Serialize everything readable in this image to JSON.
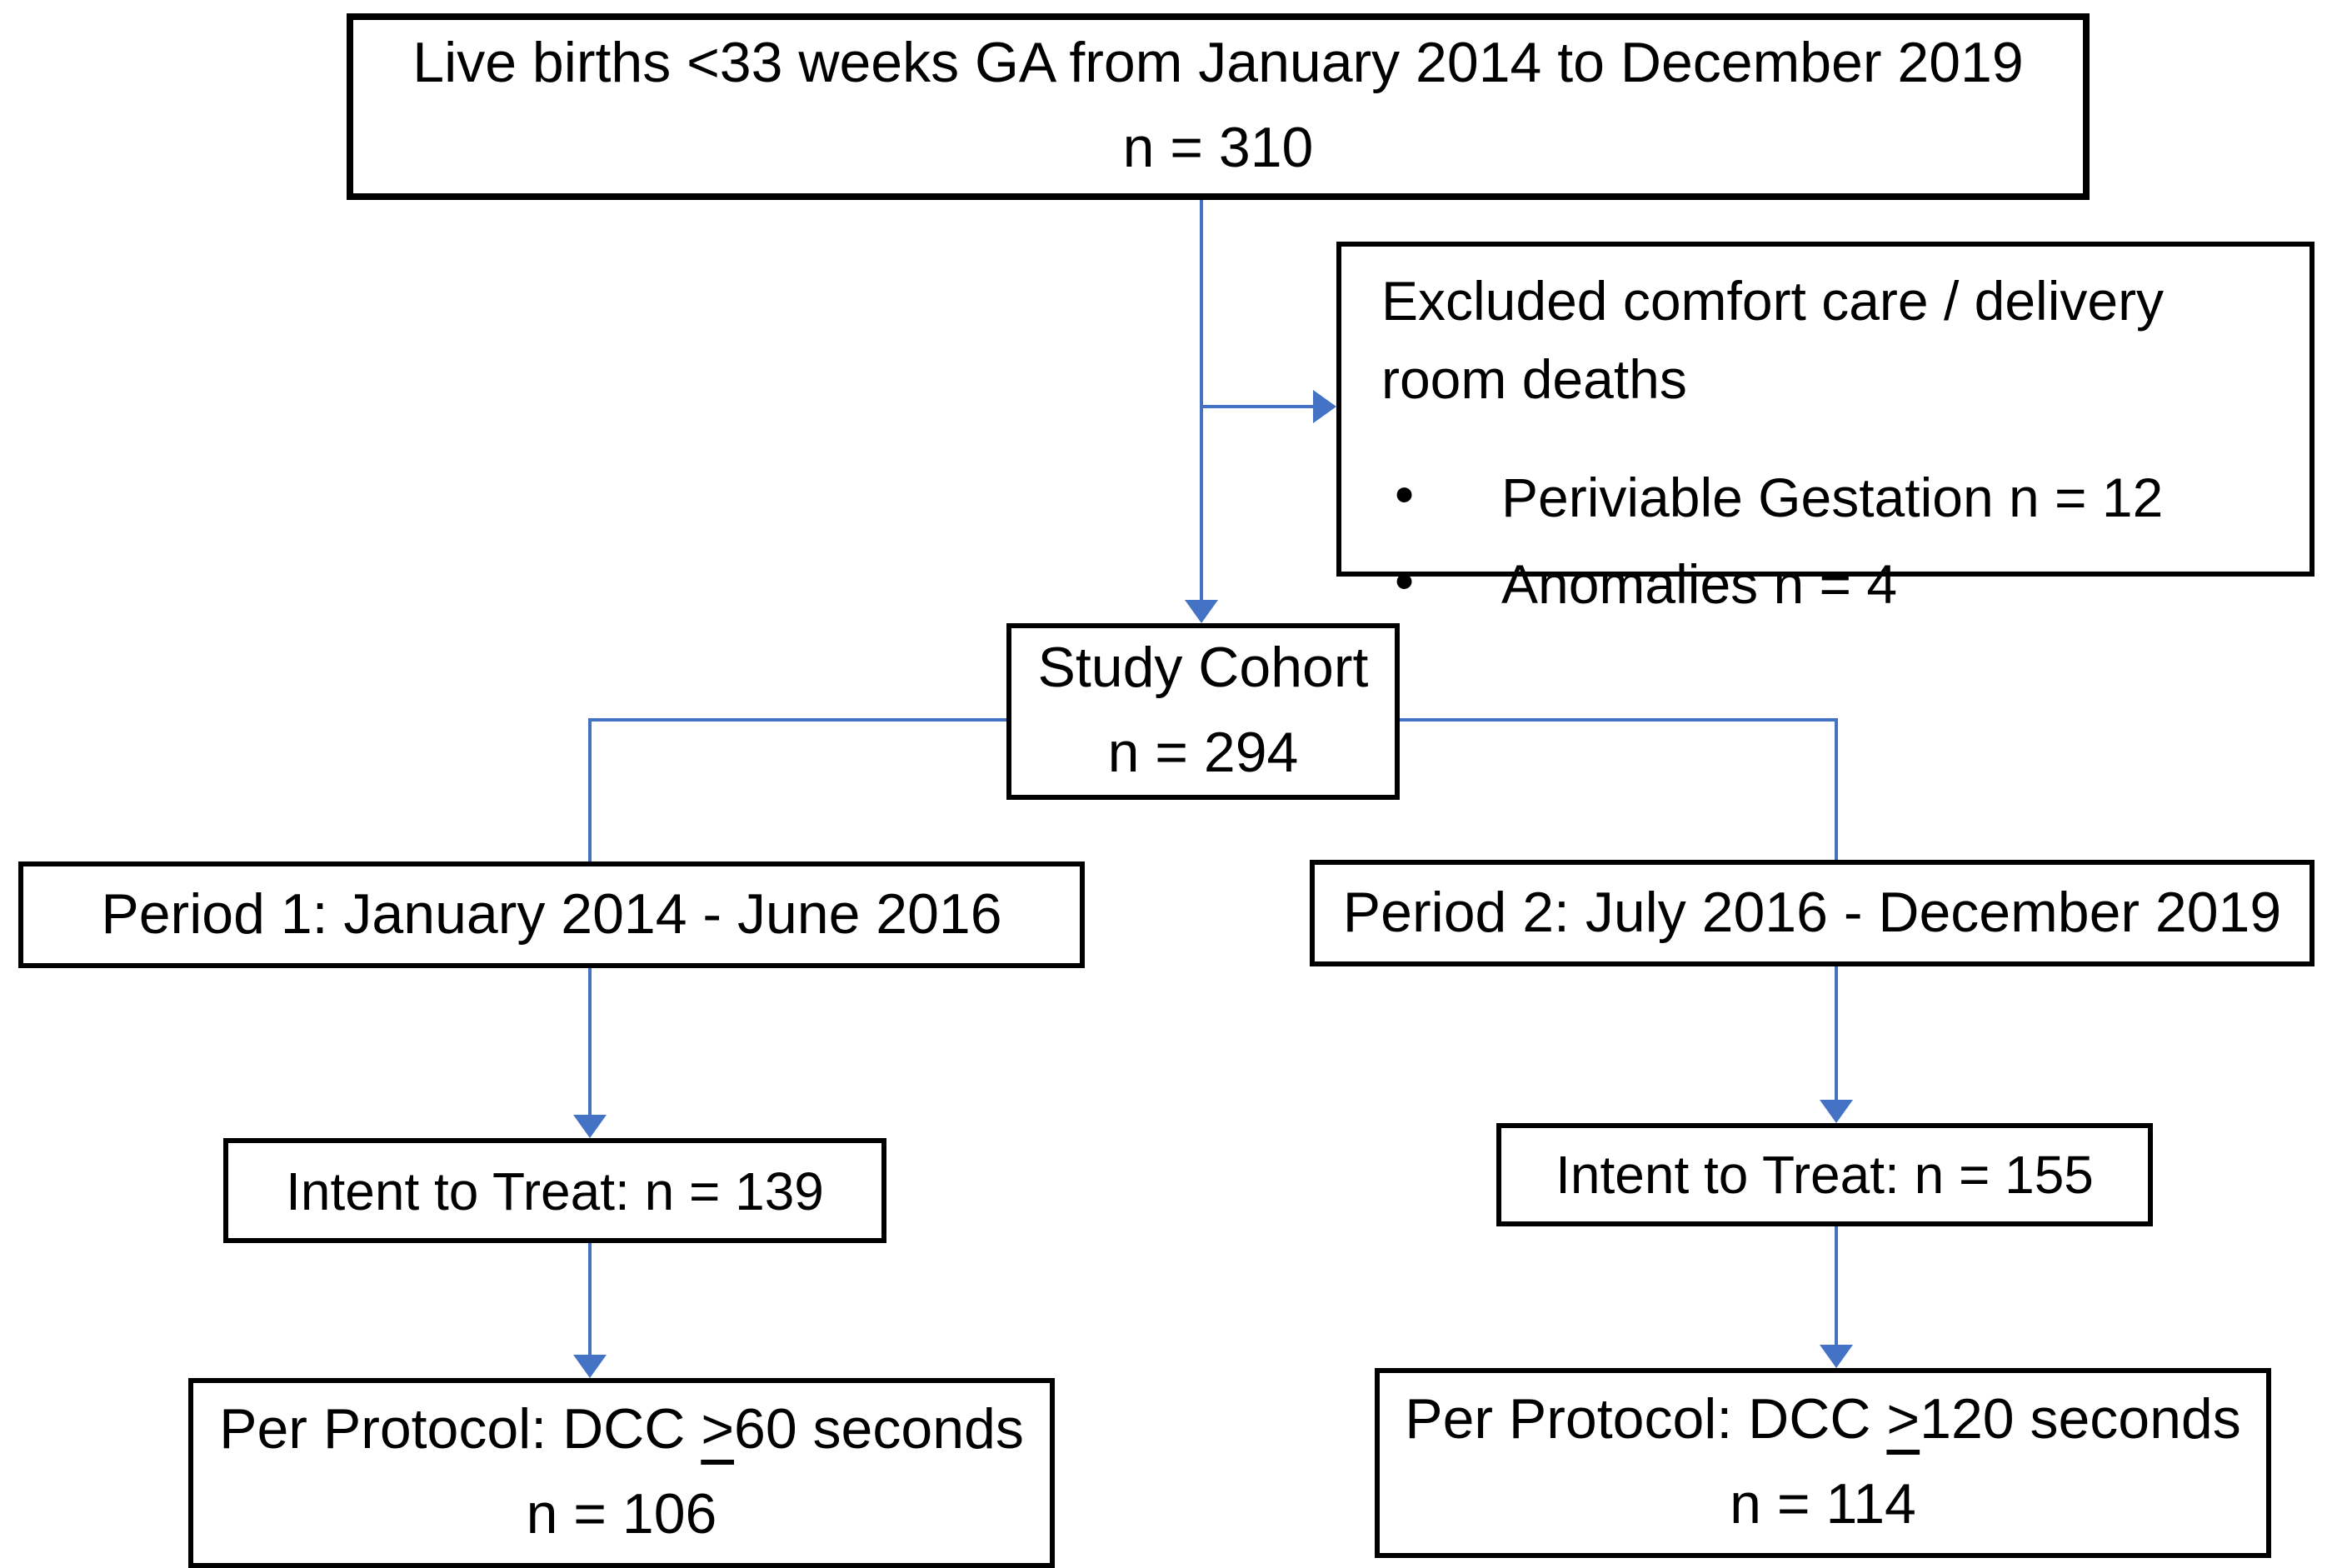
{
  "diagram": {
    "colors": {
      "arrow": "#4472C4",
      "box_border": "#000000",
      "background": "#FFFFFF",
      "text": "#000000"
    },
    "boxes": {
      "live_births": {
        "line1": "Live births <33 weeks GA from January 2014 to December 2019",
        "line2": "n = 310"
      },
      "excluded": {
        "heading": "Excluded comfort care / delivery room deaths",
        "bullets": [
          "Periviable Gestation n = 12",
          "Anomalies n = 4"
        ]
      },
      "study_cohort": {
        "line1": "Study Cohort",
        "line2": "n = 294"
      },
      "period1": {
        "label": "Period 1: January 2014 - June 2016"
      },
      "period2": {
        "label": "Period 2: July 2016 - December 2019"
      },
      "intent_to_treat_1": {
        "label": "Intent to Treat: n = 139"
      },
      "intent_to_treat_2": {
        "label": "Intent to Treat: n = 155"
      },
      "per_protocol_1": {
        "line1": "Per Protocol: DCC ≥60 seconds",
        "line2": "n = 106"
      },
      "per_protocol_2": {
        "line1": "Per Protocol: DCC ≥120 seconds",
        "line2": "n = 114"
      }
    }
  }
}
